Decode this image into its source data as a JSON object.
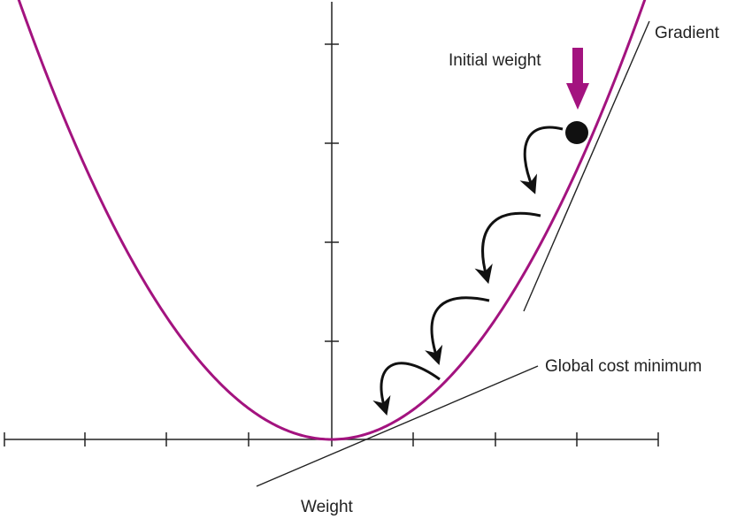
{
  "labels": {
    "gradient": "Gradient",
    "initial_weight": "Initial weight",
    "global_minimum": "Global cost minimum",
    "x_axis": "Weight"
  },
  "colors": {
    "curve": "#a3137f",
    "arrow_marker": "#a3137f",
    "axis": "#222222",
    "ball": "#111111",
    "step_arrows": "#111111"
  },
  "icons": {
    "initial_weight_marker": "down-arrow-icon",
    "ball": "circle-icon",
    "step": "curved-arrow-icon"
  }
}
